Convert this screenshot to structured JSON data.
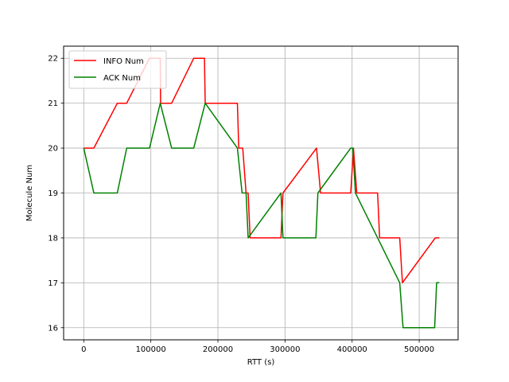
{
  "chart_data": {
    "type": "line",
    "title": "",
    "xlabel": "RTT (s)",
    "ylabel": "Molecule Num",
    "xlim": [
      -30000,
      558000
    ],
    "ylim": [
      15.73,
      22.27
    ],
    "x_ticks": [
      0,
      100000,
      200000,
      300000,
      400000,
      500000
    ],
    "x_tick_labels": [
      "0",
      "100000",
      "200000",
      "300000",
      "400000",
      "500000"
    ],
    "y_ticks": [
      16,
      17,
      18,
      19,
      20,
      21,
      22
    ],
    "y_tick_labels": [
      "16",
      "17",
      "18",
      "19",
      "20",
      "21",
      "22"
    ],
    "grid": true,
    "legend_position": "top-left",
    "series": [
      {
        "name": "INFO Num",
        "color": "#ff0000",
        "points": [
          [
            0,
            20
          ],
          [
            15000,
            20
          ],
          [
            50000,
            21
          ],
          [
            64000,
            21
          ],
          [
            98000,
            22
          ],
          [
            114000,
            22
          ],
          [
            114500,
            21
          ],
          [
            131000,
            21
          ],
          [
            164000,
            22
          ],
          [
            180000,
            22
          ],
          [
            181000,
            21
          ],
          [
            229000,
            21
          ],
          [
            231000,
            20
          ],
          [
            237000,
            20
          ],
          [
            242000,
            19
          ],
          [
            245000,
            19
          ],
          [
            248000,
            18
          ],
          [
            294000,
            18
          ],
          [
            297000,
            19
          ],
          [
            347000,
            20
          ],
          [
            353000,
            19
          ],
          [
            398000,
            19
          ],
          [
            402000,
            20
          ],
          [
            407000,
            19
          ],
          [
            438000,
            19
          ],
          [
            441000,
            18
          ],
          [
            471000,
            18
          ],
          [
            475000,
            17
          ],
          [
            524000,
            18
          ],
          [
            530000,
            18
          ]
        ]
      },
      {
        "name": "ACK Num",
        "color": "#008000",
        "points": [
          [
            0,
            20
          ],
          [
            15000,
            19
          ],
          [
            50000,
            19
          ],
          [
            64000,
            20
          ],
          [
            98000,
            20
          ],
          [
            114000,
            21
          ],
          [
            131000,
            20
          ],
          [
            164000,
            20
          ],
          [
            181000,
            21
          ],
          [
            229000,
            20
          ],
          [
            236000,
            19
          ],
          [
            242000,
            19
          ],
          [
            245000,
            18
          ],
          [
            294000,
            19
          ],
          [
            297000,
            18
          ],
          [
            346000,
            18
          ],
          [
            349000,
            19
          ],
          [
            398000,
            20
          ],
          [
            401000,
            20
          ],
          [
            405000,
            19
          ],
          [
            438000,
            18
          ],
          [
            471000,
            17
          ],
          [
            476000,
            16
          ],
          [
            523000,
            16
          ],
          [
            526000,
            17
          ],
          [
            530000,
            17
          ]
        ]
      }
    ]
  }
}
